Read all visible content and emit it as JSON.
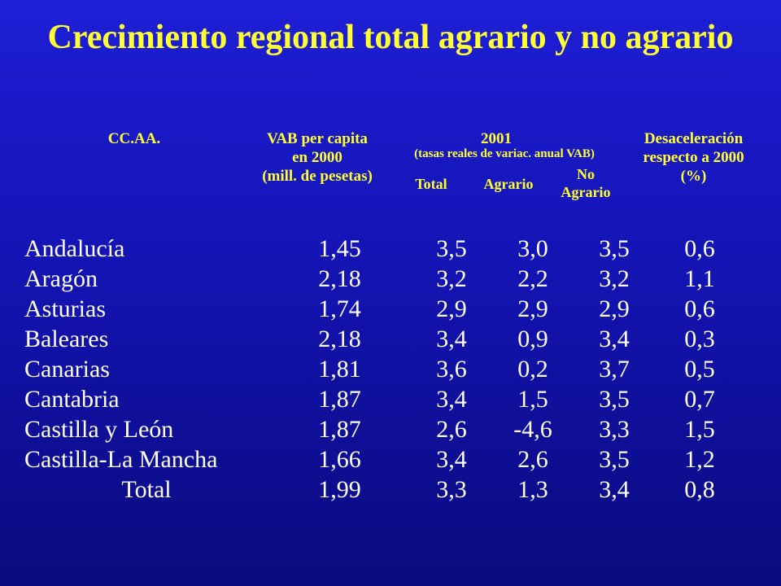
{
  "title": "Crecimiento regional total agrario y no agrario",
  "headers": {
    "region": "CC.AA.",
    "vab": [
      "VAB per capita",
      "en 2000",
      "(mill. de pesetas)"
    ],
    "year": "2001",
    "year_sub": "(tasas reales de variac. anual VAB)",
    "total": "Total",
    "agrario": "Agrario",
    "no_agrario": [
      "No",
      "Agrario"
    ],
    "desaceleracion": [
      "Desaceleración",
      "respecto a 2000",
      "(%)"
    ]
  },
  "rows": [
    {
      "region": "Andalucía",
      "vab": "1,45",
      "total": "3,5",
      "agrario": "3,0",
      "no_agrario": "3,5",
      "desaceleracion": "0,6"
    },
    {
      "region": "Aragón",
      "vab": "2,18",
      "total": "3,2",
      "agrario": "2,2",
      "no_agrario": "3,2",
      "desaceleracion": "1,1"
    },
    {
      "region": "Asturias",
      "vab": "1,74",
      "total": "2,9",
      "agrario": "2,9",
      "no_agrario": "2,9",
      "desaceleracion": "0,6"
    },
    {
      "region": "Baleares",
      "vab": "2,18",
      "total": "3,4",
      "agrario": "0,9",
      "no_agrario": "3,4",
      "desaceleracion": "0,3"
    },
    {
      "region": "Canarias",
      "vab": "1,81",
      "total": "3,6",
      "agrario": "0,2",
      "no_agrario": "3,7",
      "desaceleracion": "0,5"
    },
    {
      "region": "Cantabria",
      "vab": "1,87",
      "total": "3,4",
      "agrario": "1,5",
      "no_agrario": "3,5",
      "desaceleracion": "0,7"
    },
    {
      "region": "Castilla y León",
      "vab": "1,87",
      "total": "2,6",
      "agrario": "-4,6",
      "no_agrario": "3,3",
      "desaceleracion": "1,5"
    },
    {
      "region": "Castilla-La Mancha",
      "vab": "1,66",
      "total": "3,4",
      "agrario": "2,6",
      "no_agrario": "3,5",
      "desaceleracion": "1,2"
    },
    {
      "region": "Total",
      "vab": "1,99",
      "total": "3,3",
      "agrario": "1,3",
      "no_agrario": "3,4",
      "desaceleracion": "0,8"
    }
  ],
  "colors": {
    "background": "#1414b4",
    "title": "#ffff33",
    "text": "#ffffff"
  }
}
